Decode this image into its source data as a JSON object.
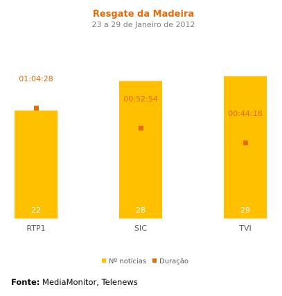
{
  "chart_data": {
    "type": "bar",
    "title": "Resgate da Madeira",
    "subtitle": "23 a 29 de Janeiro de 2012",
    "categories": [
      "RTP1",
      "SIC",
      "TVI"
    ],
    "series": [
      {
        "name": "Nº notícias",
        "kind": "bar",
        "values": [
          22,
          28,
          29
        ],
        "ylim": [
          0,
          35
        ]
      },
      {
        "name": "Duração",
        "kind": "marker",
        "values": [
          "01:04:28",
          "00:52:54",
          "00:44:18"
        ],
        "seconds": [
          3868,
          3174,
          2658
        ],
        "ylim": [
          0,
          6000
        ]
      }
    ],
    "legend_position": "bottom",
    "grid": false,
    "colors": {
      "bar": "#FFC000",
      "marker": "#E46C0A",
      "title": "#E46C0A",
      "bar_label": "#FFFFFF"
    }
  },
  "source": {
    "label": "Fonte:",
    "text": " MediaMonitor, Telenews"
  }
}
